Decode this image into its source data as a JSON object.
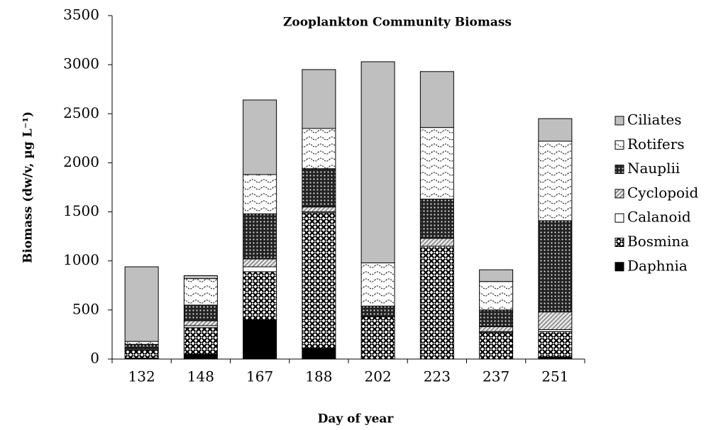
{
  "chart_data": {
    "type": "stacked_bar",
    "title": "Zooplankton Community Biomass",
    "xlabel": "Day of year",
    "ylabel": "Biomass (dw/v, µg L⁻¹)",
    "categories": [
      "132",
      "148",
      "167",
      "188",
      "202",
      "223",
      "237",
      "251"
    ],
    "series": [
      {
        "name": "Daphnia",
        "color": "#000000",
        "pattern": "none",
        "values": [
          10,
          50,
          400,
          110,
          0,
          0,
          0,
          20
        ]
      },
      {
        "name": "Bosmina",
        "color": "#000000",
        "pattern": "weave",
        "values": [
          80,
          270,
          490,
          1380,
          430,
          1150,
          270,
          260
        ]
      },
      {
        "name": "Calanoid",
        "color": "#ffffff",
        "pattern": "none",
        "values": [
          10,
          20,
          50,
          10,
          0,
          0,
          10,
          20
        ]
      },
      {
        "name": "Cyclopoid",
        "color": "#808080",
        "pattern": "hatch",
        "values": [
          10,
          50,
          80,
          50,
          0,
          80,
          50,
          180
        ]
      },
      {
        "name": "Nauplii",
        "color": "#000000",
        "pattern": "dots",
        "values": [
          40,
          160,
          460,
          390,
          110,
          400,
          170,
          930
        ]
      },
      {
        "name": "Rotifers",
        "color": "#000000",
        "pattern": "wave",
        "values": [
          30,
          270,
          400,
          410,
          440,
          730,
          290,
          810
        ]
      },
      {
        "name": "Ciliates",
        "color": "#bfbfbf",
        "pattern": "none",
        "values": [
          760,
          30,
          760,
          600,
          2050,
          570,
          120,
          230
        ]
      }
    ],
    "ylim": [
      0,
      3500
    ],
    "yticks": [
      0,
      500,
      1000,
      1500,
      2000,
      2500,
      3000,
      3500
    ],
    "grid": false,
    "legend": "right"
  }
}
